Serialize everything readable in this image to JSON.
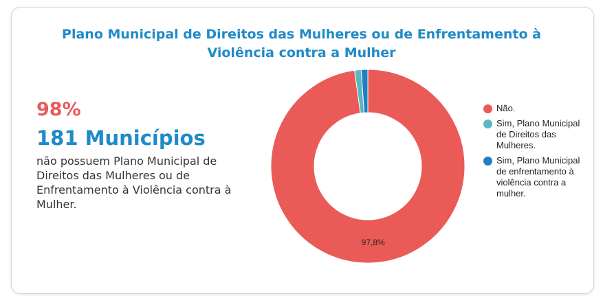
{
  "title": "Plano Municipal de Direitos das Mulheres ou de Enfrentamento à Violência contra a Mulher",
  "highlight": {
    "percent": "98%",
    "count": "181 Municípios",
    "description": "não possuem Plano Municipal de Direitos das Mulheres ou de Enfrentamento à Violência contra à Mulher."
  },
  "chart_data": {
    "type": "pie",
    "title": "Plano Municipal de Direitos das Mulheres ou de Enfrentamento à Violência contra a Mulher",
    "categories": [
      "Não.",
      "Sim, Plano Municipal de Direitos das Mulheres.",
      "Sim, Plano Municipal de enfrentamento à violência contra a mulher."
    ],
    "values": [
      97.8,
      1.1,
      1.1
    ],
    "colors": [
      "#ea5b57",
      "#5ab8c2",
      "#1f7fc2"
    ],
    "data_labels": [
      "97,8%",
      "",
      ""
    ],
    "legend_position": "right",
    "donut": true
  }
}
